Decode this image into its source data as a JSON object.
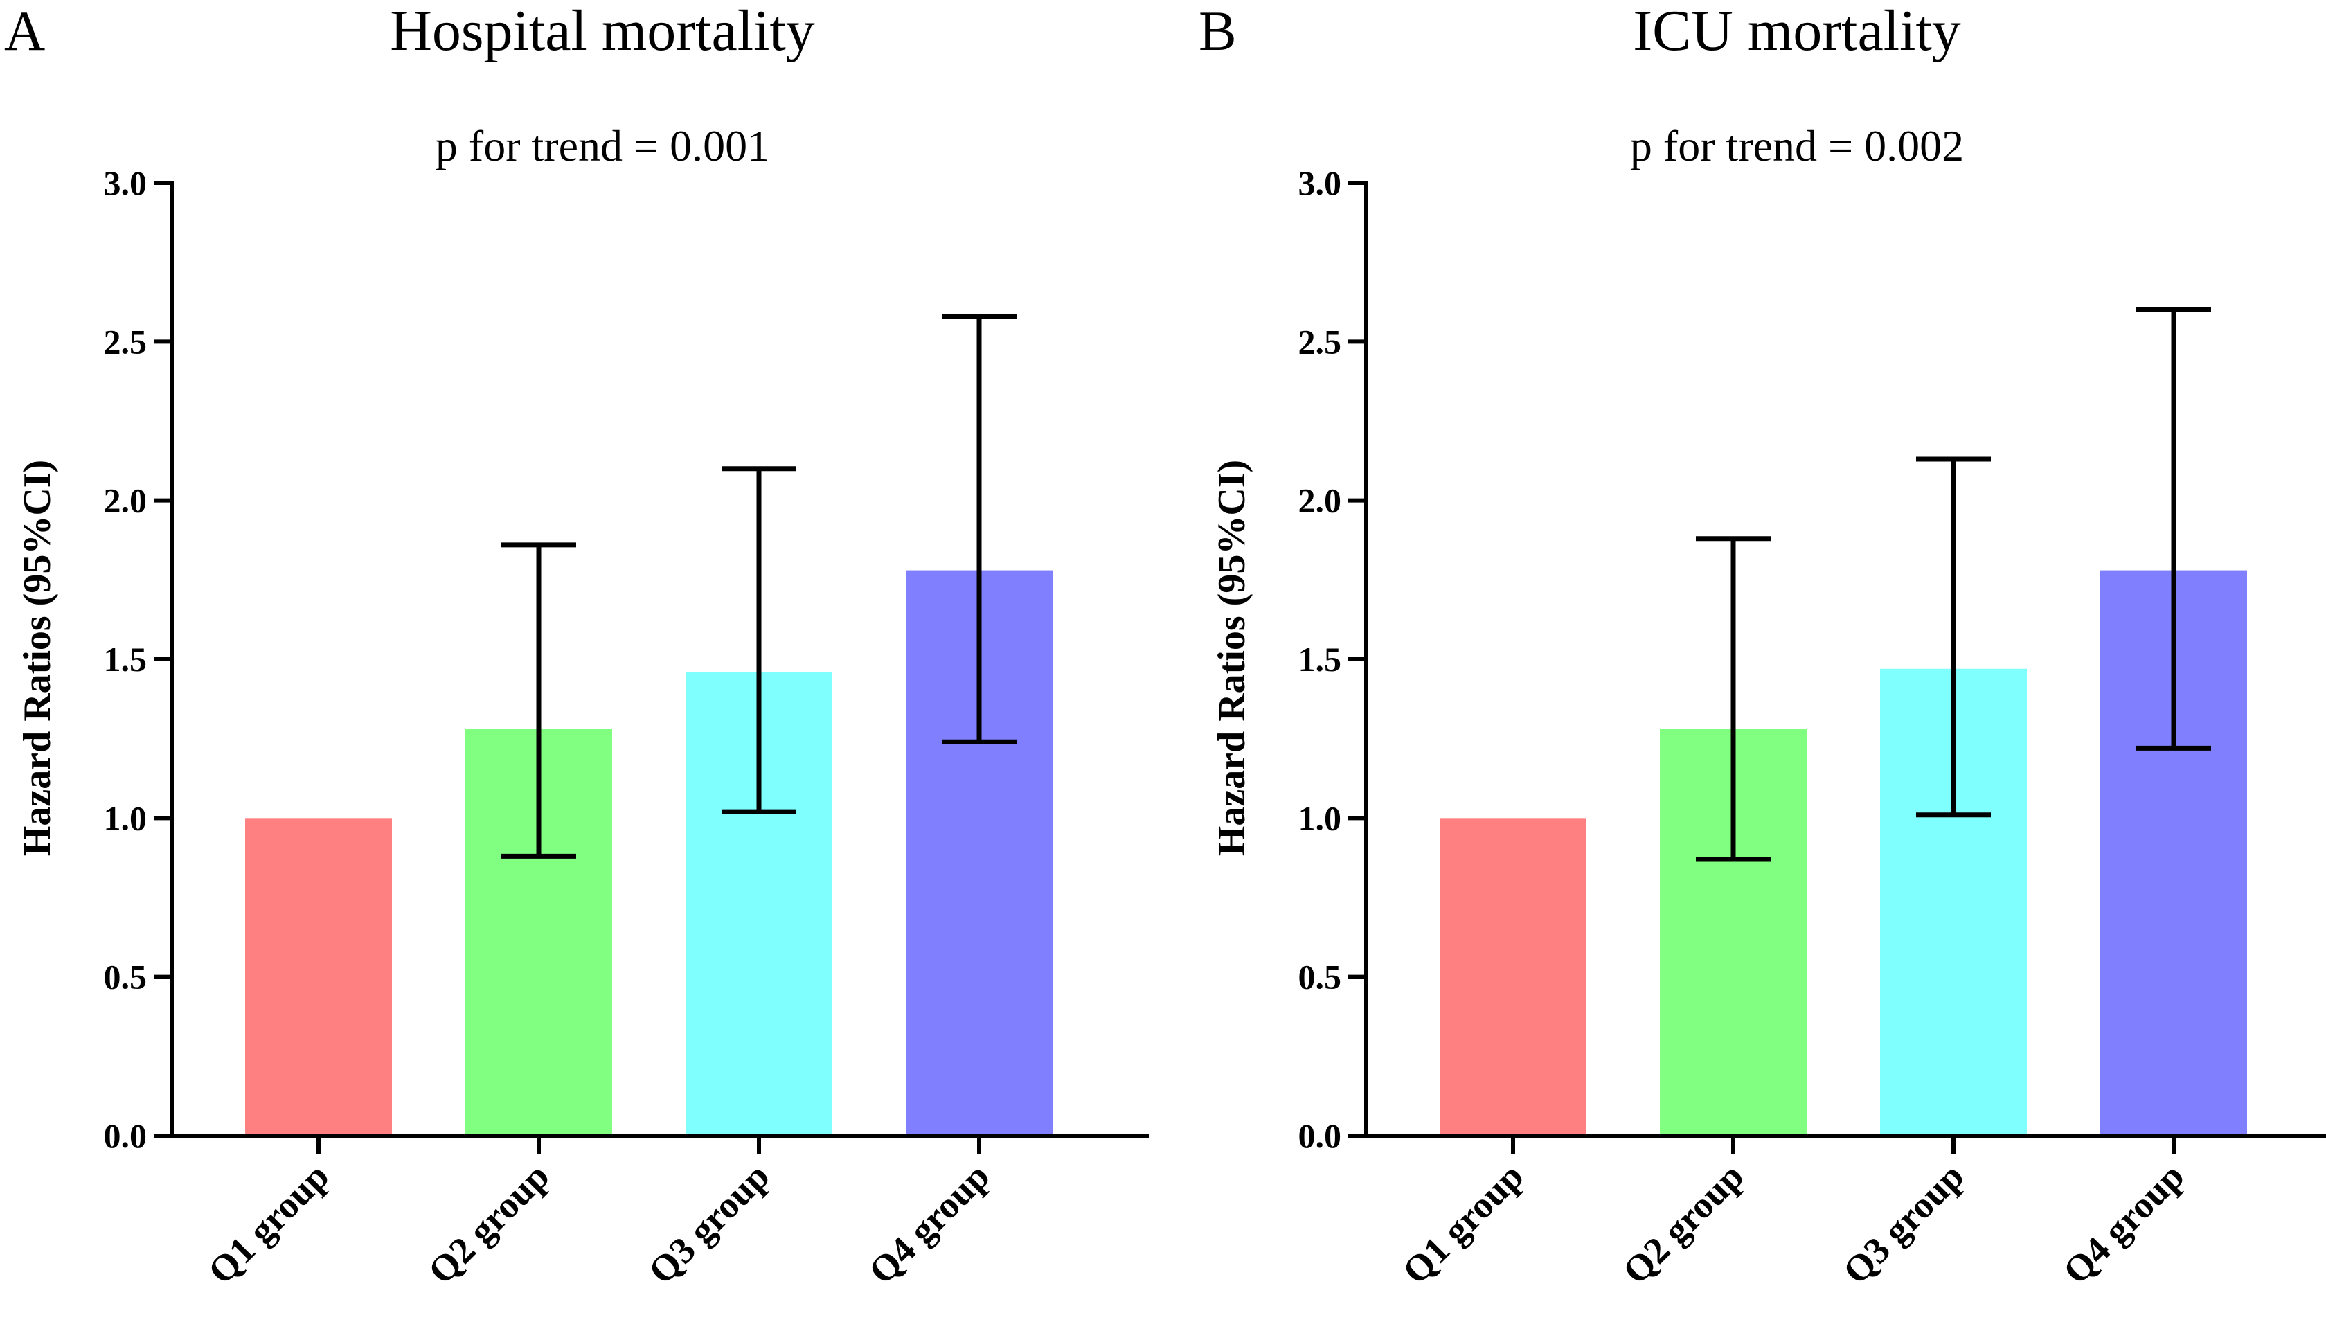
{
  "chart_data": [
    {
      "panel": "A",
      "type": "bar",
      "title": "Hospital mortality",
      "subtitle": "p for trend = 0.001",
      "xlabel": "",
      "ylabel": "Hazard Ratios (95%CI)",
      "ylim": [
        0,
        3.0
      ],
      "yticks": [
        "0.0",
        "0.5",
        "1.0",
        "1.5",
        "2.0",
        "2.5",
        "3.0"
      ],
      "categories": [
        "Q1 group",
        "Q2 group",
        "Q3 group",
        "Q4 group"
      ],
      "values": [
        1.0,
        1.28,
        1.46,
        1.78
      ],
      "ci_lower": [
        null,
        0.88,
        1.02,
        1.24
      ],
      "ci_upper": [
        null,
        1.86,
        2.1,
        2.58
      ],
      "colors": [
        "#FF8080",
        "#80FF80",
        "#80FFFF",
        "#8080FF"
      ],
      "grid": false
    },
    {
      "panel": "B",
      "type": "bar",
      "title": "ICU mortality",
      "subtitle": "p for trend = 0.002",
      "xlabel": "",
      "ylabel": "Hazard Ratios (95%CI)",
      "ylim": [
        0,
        3.0
      ],
      "yticks": [
        "0.0",
        "0.5",
        "1.0",
        "1.5",
        "2.0",
        "2.5",
        "3.0"
      ],
      "categories": [
        "Q1 group",
        "Q2 group",
        "Q3 group",
        "Q4 group"
      ],
      "values": [
        1.0,
        1.28,
        1.47,
        1.78
      ],
      "ci_lower": [
        null,
        0.87,
        1.01,
        1.22
      ],
      "ci_upper": [
        null,
        1.88,
        2.13,
        2.6
      ],
      "colors": [
        "#FF8080",
        "#80FF80",
        "#80FFFF",
        "#8080FF"
      ],
      "grid": false
    }
  ]
}
